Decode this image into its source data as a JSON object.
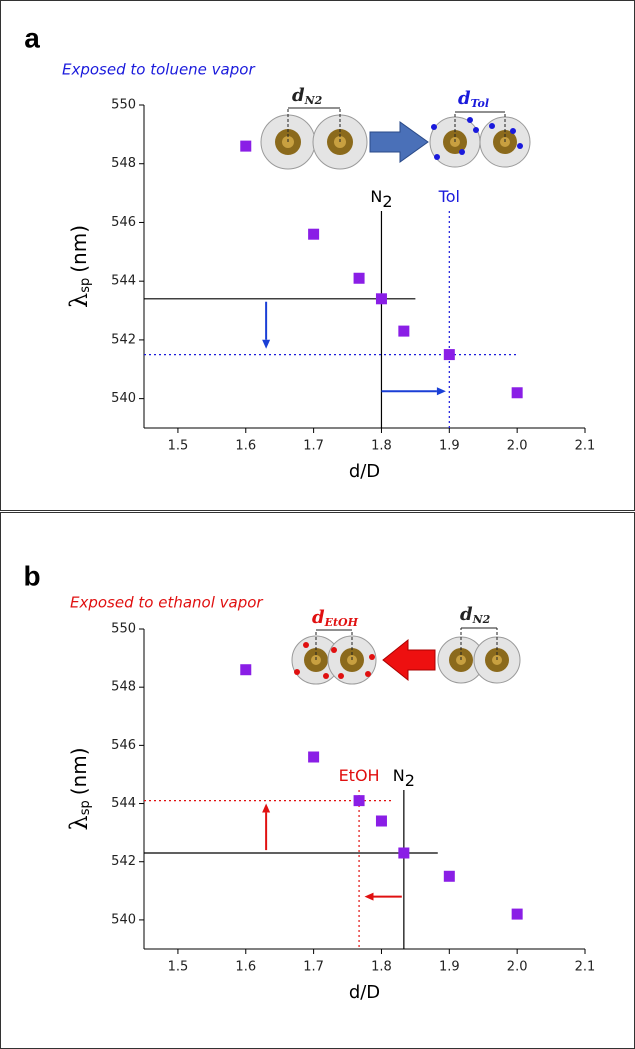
{
  "chart_data": [
    {
      "type": "scatter",
      "panel": "a",
      "subtitle": "Exposed to toluene vapor",
      "subtitle_color": "#1a1adc",
      "x_label": "d/D",
      "y_label": {
        "symbol": "λ",
        "subscript": "sp",
        "unit": "(nm)"
      },
      "x": [
        1.6,
        1.7,
        1.767,
        1.8,
        1.833,
        1.9,
        2.0
      ],
      "values": [
        548.6,
        545.6,
        544.1,
        543.4,
        542.3,
        541.5,
        540.2
      ],
      "color": "#8a1ee6",
      "xlim": [
        1.45,
        2.1
      ],
      "xticks": [
        1.5,
        1.6,
        1.7,
        1.8,
        1.9,
        {
          "value": 2,
          "label": "2.0"
        },
        2.1
      ],
      "ylim": [
        539,
        550
      ],
      "yticks": [
        540,
        542,
        544,
        546,
        548,
        550
      ],
      "reference_lines": [
        {
          "x": 1.8,
          "y": 543.4,
          "color": "#000000",
          "style": "solid",
          "label": {
            "text": "N",
            "subscript": "2"
          }
        },
        {
          "x": 1.9,
          "y": 541.5,
          "color": "#1a1adc",
          "style": "dotted",
          "label": {
            "text": "Tol"
          }
        }
      ],
      "arrows": [
        {
          "from": [
            1.63,
            543.3
          ],
          "to": [
            1.63,
            541.7
          ],
          "color": "#1a3fd6"
        },
        {
          "from": [
            1.8,
            540.25
          ],
          "to": [
            1.895,
            540.25
          ],
          "color": "#1a3fd6"
        }
      ],
      "inset_labels": [
        {
          "text": "d",
          "subscript": "N2"
        },
        {
          "text": "d",
          "subscript": "Tol"
        }
      ]
    },
    {
      "type": "scatter",
      "panel": "b",
      "subtitle": "Exposed to ethanol vapor",
      "subtitle_color": "#e01010",
      "x_label": "d/D",
      "y_label": {
        "symbol": "λ",
        "subscript": "sp",
        "unit": "(nm)"
      },
      "x": [
        1.6,
        1.7,
        1.767,
        1.8,
        1.833,
        1.9,
        2.0
      ],
      "values": [
        548.6,
        545.6,
        544.1,
        543.4,
        542.3,
        541.5,
        540.2
      ],
      "color": "#8a1ee6",
      "xlim": [
        1.45,
        2.1
      ],
      "xticks": [
        1.5,
        1.6,
        1.7,
        1.8,
        1.9,
        {
          "value": 2,
          "label": "2.0"
        },
        2.1
      ],
      "ylim": [
        539,
        550
      ],
      "yticks": [
        540,
        542,
        544,
        546,
        548,
        550
      ],
      "reference_lines": [
        {
          "x": 1.767,
          "y": 544.1,
          "color": "#e01010",
          "style": "dotted",
          "label": {
            "text": "EtOH"
          }
        },
        {
          "x": 1.833,
          "y": 542.3,
          "color": "#000000",
          "style": "solid",
          "label": {
            "text": "N",
            "subscript": "2"
          }
        }
      ],
      "arrows": [
        {
          "from": [
            1.63,
            542.4
          ],
          "to": [
            1.63,
            544.0
          ],
          "color": "#e01010"
        },
        {
          "from": [
            1.83,
            540.8
          ],
          "to": [
            1.775,
            540.8
          ],
          "color": "#e01010"
        }
      ],
      "inset_labels": [
        {
          "text": "d",
          "subscript": "EtOH"
        },
        {
          "text": "d",
          "subscript": "N2"
        }
      ]
    }
  ]
}
